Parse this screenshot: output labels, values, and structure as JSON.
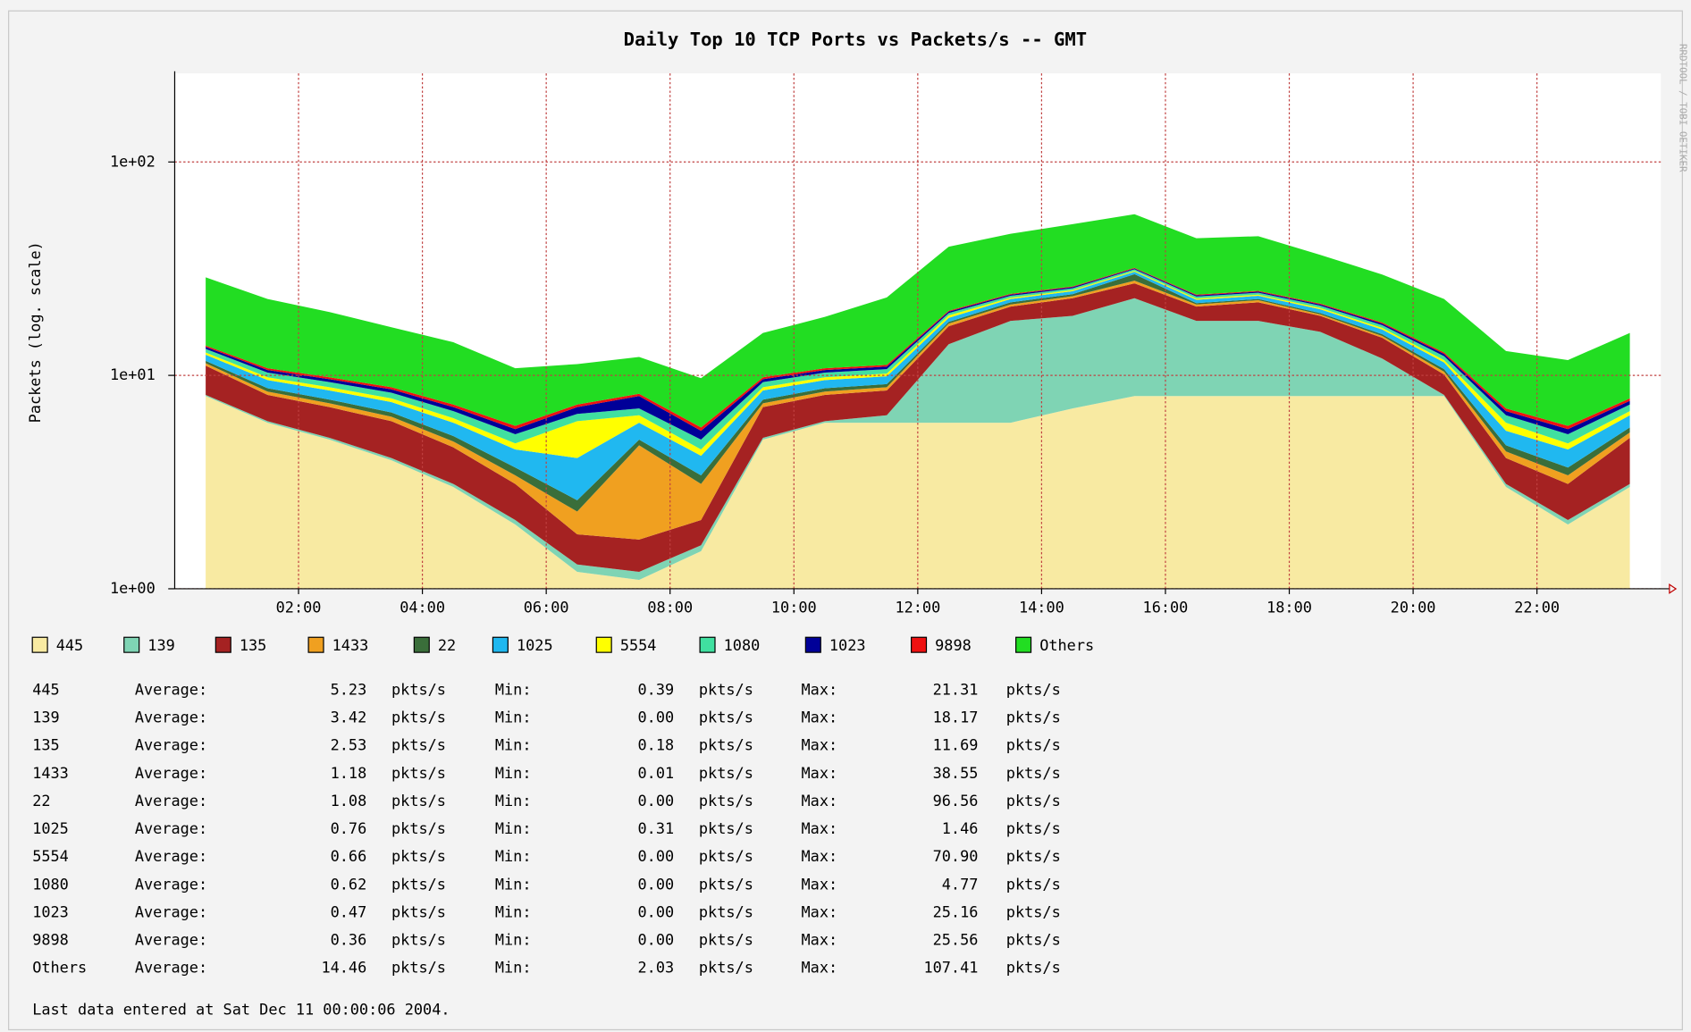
{
  "chart_data": {
    "type": "stacked-area",
    "title": "Daily Top 10 TCP Ports vs Packets/s -- GMT",
    "y_label": "Packets (log. scale)",
    "watermark": "RRDTOOL / TOBI OETIKER",
    "log_scale": true,
    "grid": true,
    "x": [
      0.5,
      1.5,
      2.5,
      3.5,
      4.5,
      5.5,
      6.5,
      7.5,
      8.5,
      9.5,
      10.5,
      11.5,
      12.5,
      13.5,
      14.5,
      15.5,
      16.5,
      17.5,
      18.5,
      19.5,
      20.5,
      21.5,
      22.5,
      23.5
    ],
    "xlim": [
      0,
      24
    ],
    "xticks": [
      {
        "value": 2,
        "label": "02:00"
      },
      {
        "value": 4,
        "label": "04:00"
      },
      {
        "value": 6,
        "label": "06:00"
      },
      {
        "value": 8,
        "label": "08:00"
      },
      {
        "value": 10,
        "label": "10:00"
      },
      {
        "value": 12,
        "label": "12:00"
      },
      {
        "value": 14,
        "label": "14:00"
      },
      {
        "value": 16,
        "label": "16:00"
      },
      {
        "value": 18,
        "label": "18:00"
      },
      {
        "value": 20,
        "label": "20:00"
      },
      {
        "value": 22,
        "label": "22:00"
      }
    ],
    "ylim": [
      1,
      260
    ],
    "yticks": [
      {
        "value": 1,
        "label": "1e+00"
      },
      {
        "value": 10,
        "label": "1e+01"
      },
      {
        "value": 100,
        "label": "1e+02"
      }
    ],
    "series": [
      {
        "name": "445",
        "color": "#f8eaa2",
        "values": [
          8,
          6,
          5,
          4,
          3,
          2,
          1.2,
          1.1,
          1.5,
          5,
          6,
          6,
          6,
          6,
          7,
          8,
          8,
          8,
          8,
          8,
          8,
          3,
          2,
          3
        ]
      },
      {
        "name": "139",
        "color": "#7fd4b4",
        "values": [
          0.1,
          0.1,
          0.1,
          0.1,
          0.1,
          0.1,
          0.1,
          0.1,
          0.1,
          0.1,
          0.1,
          0.5,
          8,
          12,
          12,
          15,
          10,
          10,
          8,
          4,
          0.1,
          0.1,
          0.1,
          0.1
        ]
      },
      {
        "name": "135",
        "color": "#a52222",
        "values": [
          3,
          2,
          2,
          2,
          1.5,
          1,
          0.5,
          0.5,
          0.5,
          2,
          2,
          2,
          3,
          3,
          4,
          4,
          3,
          4,
          3,
          3,
          2,
          1,
          1,
          2
        ]
      },
      {
        "name": "1433",
        "color": "#f0a020",
        "values": [
          0.3,
          0.3,
          0.3,
          0.3,
          0.3,
          0.3,
          0.5,
          3,
          1,
          0.3,
          0.3,
          0.3,
          0.5,
          0.5,
          0.5,
          0.8,
          0.5,
          0.5,
          0.3,
          0.3,
          0.3,
          0.3,
          0.3,
          0.3
        ]
      },
      {
        "name": "22",
        "color": "#3a6e3a",
        "values": [
          0.3,
          0.3,
          0.3,
          0.3,
          0.3,
          0.3,
          0.3,
          0.3,
          0.3,
          0.3,
          0.3,
          0.3,
          0.3,
          0.5,
          0.5,
          2,
          0.3,
          0.3,
          0.3,
          0.3,
          0.3,
          0.3,
          0.3,
          0.3
        ]
      },
      {
        "name": "1025",
        "color": "#20b8f0",
        "values": [
          0.8,
          0.8,
          0.8,
          0.8,
          0.8,
          0.8,
          1.5,
          1,
          0.8,
          0.8,
          0.8,
          0.8,
          0.8,
          0.8,
          0.8,
          0.8,
          0.8,
          0.8,
          0.8,
          0.8,
          0.8,
          0.8,
          0.8,
          0.8
        ]
      },
      {
        "name": "5554",
        "color": "#ffff00",
        "values": [
          0.3,
          0.3,
          0.3,
          0.3,
          0.3,
          0.3,
          2,
          0.5,
          0.3,
          0.3,
          0.3,
          0.3,
          0.5,
          0.3,
          0.3,
          0.3,
          0.3,
          0.3,
          0.3,
          0.3,
          0.3,
          0.5,
          0.3,
          0.3
        ]
      },
      {
        "name": "1080",
        "color": "#40e0a0",
        "values": [
          0.5,
          0.5,
          0.5,
          0.5,
          0.5,
          0.5,
          0.5,
          0.5,
          0.5,
          0.5,
          0.5,
          0.5,
          0.5,
          0.5,
          0.5,
          0.5,
          0.5,
          0.5,
          0.5,
          0.5,
          0.5,
          0.5,
          0.5,
          0.5
        ]
      },
      {
        "name": "1023",
        "color": "#000098",
        "values": [
          0.3,
          0.3,
          0.3,
          0.3,
          0.3,
          0.3,
          0.5,
          1,
          0.5,
          0.3,
          0.3,
          0.3,
          0.3,
          0.3,
          0.3,
          0.3,
          0.3,
          0.3,
          0.3,
          0.3,
          0.3,
          0.3,
          0.3,
          0.3
        ]
      },
      {
        "name": "9898",
        "color": "#ee1111",
        "values": [
          0.2,
          0.2,
          0.2,
          0.2,
          0.2,
          0.2,
          0.2,
          0.2,
          0.2,
          0.2,
          0.2,
          0.2,
          0.2,
          0.2,
          0.2,
          0.2,
          0.2,
          0.2,
          0.2,
          0.2,
          0.2,
          0.2,
          0.2,
          0.2
        ]
      },
      {
        "name": "Others",
        "color": "#22dd22",
        "values": [
          15,
          12,
          10,
          8,
          7,
          5,
          4,
          4,
          4,
          6,
          8,
          12,
          20,
          22,
          25,
          25,
          20,
          20,
          15,
          12,
          10,
          6,
          6,
          8
        ]
      }
    ],
    "stats": [
      [
        "445",
        "Average:",
        "5.23",
        "pkts/s",
        "Min:",
        "0.39",
        "pkts/s",
        "Max:",
        "21.31",
        "pkts/s"
      ],
      [
        "139",
        "Average:",
        "3.42",
        "pkts/s",
        "Min:",
        "0.00",
        "pkts/s",
        "Max:",
        "18.17",
        "pkts/s"
      ],
      [
        "135",
        "Average:",
        "2.53",
        "pkts/s",
        "Min:",
        "0.18",
        "pkts/s",
        "Max:",
        "11.69",
        "pkts/s"
      ],
      [
        "1433",
        "Average:",
        "1.18",
        "pkts/s",
        "Min:",
        "0.01",
        "pkts/s",
        "Max:",
        "38.55",
        "pkts/s"
      ],
      [
        "22",
        "Average:",
        "1.08",
        "pkts/s",
        "Min:",
        "0.00",
        "pkts/s",
        "Max:",
        "96.56",
        "pkts/s"
      ],
      [
        "1025",
        "Average:",
        "0.76",
        "pkts/s",
        "Min:",
        "0.31",
        "pkts/s",
        "Max:",
        "1.46",
        "pkts/s"
      ],
      [
        "5554",
        "Average:",
        "0.66",
        "pkts/s",
        "Min:",
        "0.00",
        "pkts/s",
        "Max:",
        "70.90",
        "pkts/s"
      ],
      [
        "1080",
        "Average:",
        "0.62",
        "pkts/s",
        "Min:",
        "0.00",
        "pkts/s",
        "Max:",
        "4.77",
        "pkts/s"
      ],
      [
        "1023",
        "Average:",
        "0.47",
        "pkts/s",
        "Min:",
        "0.00",
        "pkts/s",
        "Max:",
        "25.16",
        "pkts/s"
      ],
      [
        "9898",
        "Average:",
        "0.36",
        "pkts/s",
        "Min:",
        "0.00",
        "pkts/s",
        "Max:",
        "25.56",
        "pkts/s"
      ],
      [
        "Others",
        "Average:",
        "14.46",
        "pkts/s",
        "Min:",
        "2.03",
        "pkts/s",
        "Max:",
        "107.41",
        "pkts/s"
      ]
    ],
    "footer": "Last data entered at Sat Dec 11 00:00:06 2004."
  }
}
